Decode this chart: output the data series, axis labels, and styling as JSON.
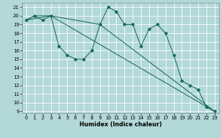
{
  "title": "",
  "xlabel": "Humidex (Indice chaleur)",
  "background_color": "#b2d8d8",
  "grid_color": "#ffffff",
  "line_color": "#1a6b5a",
  "xlim": [
    -0.5,
    23.5
  ],
  "ylim": [
    8.8,
    21.5
  ],
  "yticks": [
    9,
    10,
    11,
    12,
    13,
    14,
    15,
    16,
    17,
    18,
    19,
    20,
    21
  ],
  "xticks": [
    0,
    1,
    2,
    3,
    4,
    5,
    6,
    7,
    8,
    9,
    10,
    11,
    12,
    13,
    14,
    15,
    16,
    17,
    18,
    19,
    20,
    21,
    22,
    23
  ],
  "series1_x": [
    0,
    1,
    2,
    3,
    4,
    5,
    6,
    7,
    8,
    9,
    10,
    11,
    12,
    13,
    14,
    15,
    16,
    17,
    18,
    19,
    20,
    21,
    22,
    23
  ],
  "series1_y": [
    19.5,
    20.0,
    19.5,
    20.0,
    16.5,
    15.5,
    15.0,
    15.0,
    16.0,
    19.0,
    21.0,
    20.5,
    19.0,
    19.0,
    16.5,
    18.5,
    19.0,
    18.0,
    15.5,
    12.5,
    12.0,
    11.5,
    9.5,
    9.0
  ],
  "series2_x": [
    0,
    1,
    3,
    23
  ],
  "series2_y": [
    19.5,
    20.0,
    20.0,
    9.0
  ],
  "series3_x": [
    0,
    3,
    9,
    23
  ],
  "series3_y": [
    19.5,
    20.0,
    19.0,
    9.0
  ],
  "tick_fontsize": 5.0,
  "xlabel_fontsize": 6.0
}
